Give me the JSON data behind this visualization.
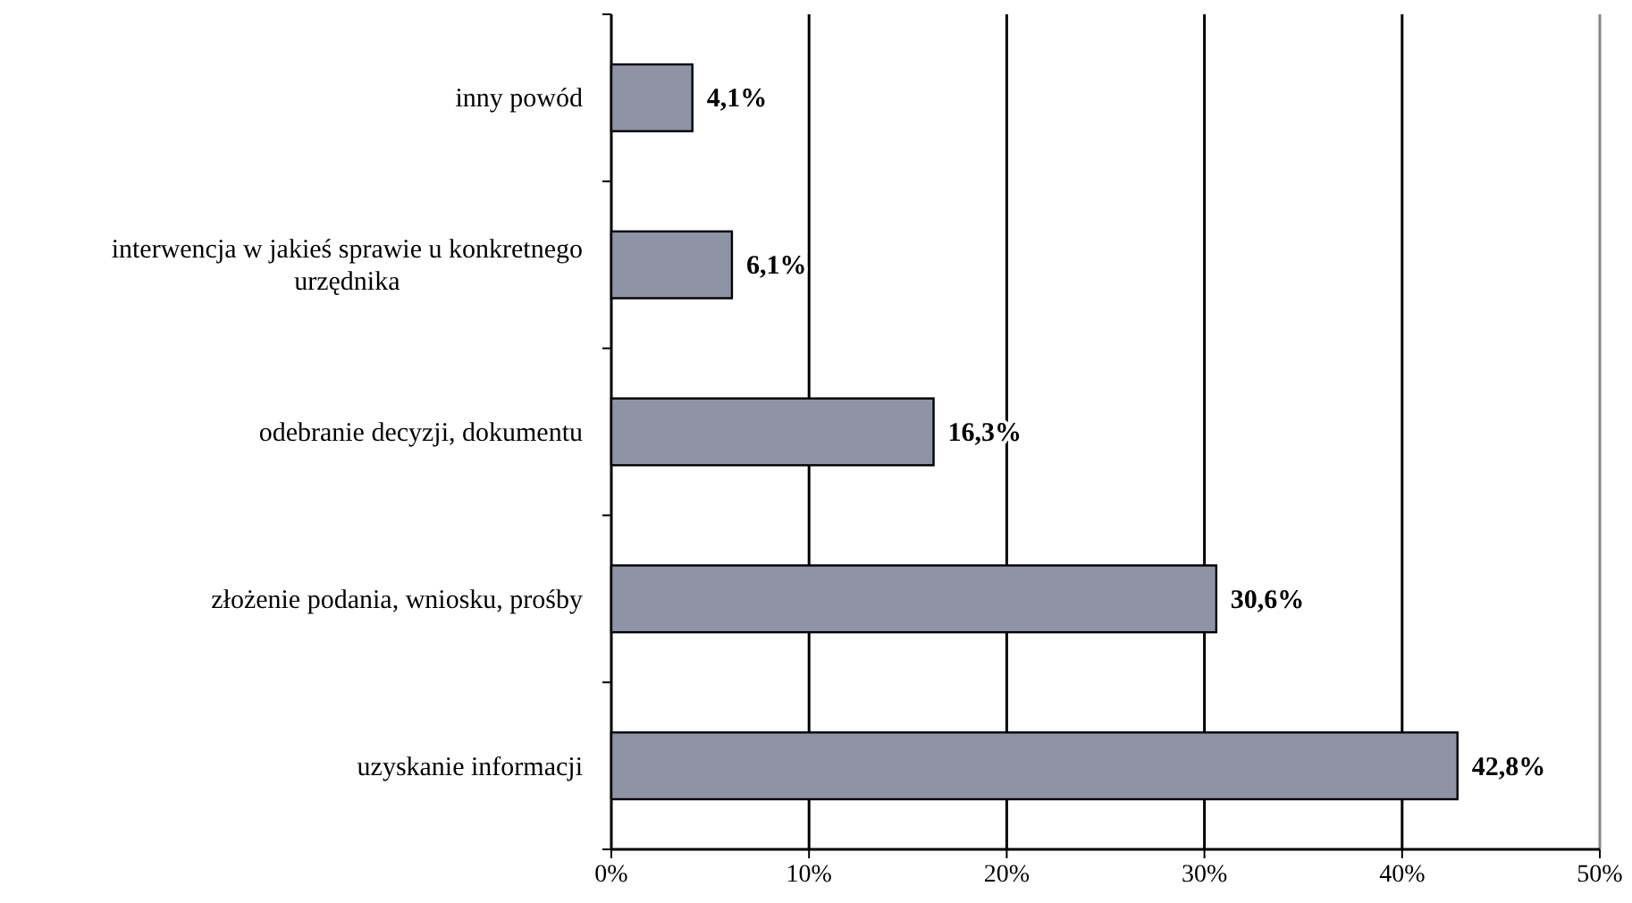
{
  "chart_data": {
    "type": "bar",
    "orientation": "horizontal",
    "categories": [
      "inny powód",
      "interwencja w jakieś sprawie u konkretnego urzędnika",
      "odebranie decyzji, dokumentu",
      "złożenie podania, wniosku, prośby",
      "uzyskanie  informacji"
    ],
    "values": [
      4.1,
      6.1,
      16.3,
      30.6,
      42.8
    ],
    "value_labels": [
      "4,1%",
      "6,1%",
      "16,3%",
      "30,6%",
      "42,8%"
    ],
    "color": "#8e93a6",
    "xlim": [
      0,
      50
    ],
    "xticks": [
      {
        "value": 0,
        "label": "0%"
      },
      {
        "value": 10,
        "label": "10%"
      },
      {
        "value": 20,
        "label": "20%"
      },
      {
        "value": 30,
        "label": "30%"
      },
      {
        "value": 40,
        "label": "40%"
      },
      {
        "value": 50,
        "label": "50%"
      }
    ],
    "grid": "x"
  }
}
